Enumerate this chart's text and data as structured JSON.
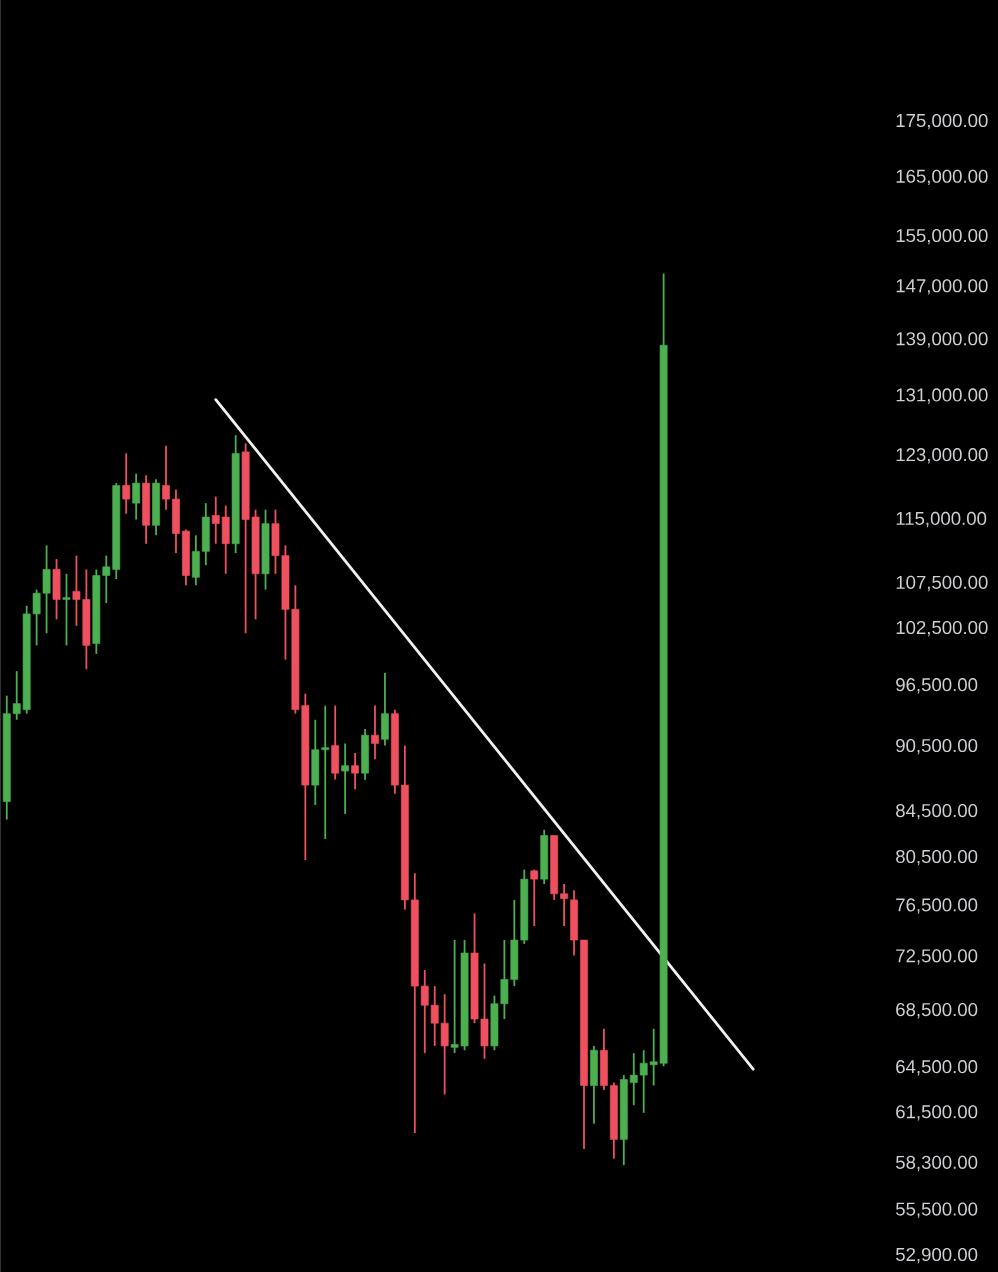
{
  "chart_data": {
    "type": "candlestick",
    "log": true,
    "tick_labels": "y",
    "ylim": [
      52000,
      199000
    ],
    "yticks": [
      {
        "value": 175000,
        "label": "175,000.00"
      },
      {
        "value": 165000,
        "label": "165,000.00"
      },
      {
        "value": 155000,
        "label": "155,000.00"
      },
      {
        "value": 147000,
        "label": "147,000.00"
      },
      {
        "value": 139000,
        "label": "139,000.00"
      },
      {
        "value": 131000,
        "label": "131,000.00"
      },
      {
        "value": 123000,
        "label": "123,000.00"
      },
      {
        "value": 115000,
        "label": "115,000.00"
      },
      {
        "value": 107500,
        "label": "107,500.00"
      },
      {
        "value": 102500,
        "label": "102,500.00"
      },
      {
        "value": 96500,
        "label": "96,500.00"
      },
      {
        "value": 90500,
        "label": "90,500.00"
      },
      {
        "value": 84500,
        "label": "84,500.00"
      },
      {
        "value": 80500,
        "label": "80,500.00"
      },
      {
        "value": 76500,
        "label": "76,500.00"
      },
      {
        "value": 72500,
        "label": "72,500.00"
      },
      {
        "value": 68500,
        "label": "68,500.00"
      },
      {
        "value": 64500,
        "label": "64,500.00"
      },
      {
        "value": 61500,
        "label": "61,500.00"
      },
      {
        "value": 58300,
        "label": "58,300.00"
      },
      {
        "value": 55500,
        "label": "55,500.00"
      },
      {
        "value": 52900,
        "label": "52,900.00"
      }
    ],
    "categories": [
      null,
      null,
      null,
      null,
      null,
      null,
      null,
      null,
      null,
      null,
      null,
      null,
      null,
      null,
      null,
      null,
      null,
      null,
      null,
      null,
      null,
      null,
      null,
      null,
      null,
      null,
      null,
      null,
      null,
      null,
      null,
      null,
      null,
      null,
      null,
      null,
      null,
      null,
      null,
      null,
      null,
      null,
      null,
      null,
      null,
      null,
      null,
      null,
      null,
      null,
      null,
      null,
      null,
      null,
      null,
      null,
      null,
      null,
      null,
      null,
      null,
      null,
      null,
      null,
      null,
      null,
      null,
      null,
      null,
      null,
      null,
      null,
      null,
      null,
      null,
      null,
      null,
      null,
      null,
      null,
      null,
      null,
      null,
      null,
      null,
      null,
      null,
      null
    ],
    "ohlc": [
      [
        85400,
        95500,
        83800,
        93700
      ],
      [
        93700,
        98000,
        93100,
        94700
      ],
      [
        94100,
        105000,
        93700,
        104100
      ],
      [
        104100,
        106800,
        100700,
        106400
      ],
      [
        106400,
        111900,
        102000,
        109100
      ],
      [
        109100,
        110300,
        103500,
        105700
      ],
      [
        105700,
        108600,
        100700,
        105900
      ],
      [
        106600,
        110700,
        102800,
        105700
      ],
      [
        105700,
        109100,
        98200,
        100700
      ],
      [
        100900,
        109100,
        99800,
        108400
      ],
      [
        108400,
        110700,
        105300,
        109400
      ],
      [
        109100,
        119500,
        108000,
        119200
      ],
      [
        119200,
        123300,
        115700,
        117500
      ],
      [
        117000,
        120700,
        115000,
        119500
      ],
      [
        119500,
        120500,
        112100,
        114300
      ],
      [
        114300,
        120000,
        113100,
        119500
      ],
      [
        119200,
        124300,
        116200,
        117500
      ],
      [
        117500,
        118700,
        111000,
        113300
      ],
      [
        113600,
        113800,
        107300,
        108400
      ],
      [
        108200,
        113100,
        107300,
        111200
      ],
      [
        111200,
        117000,
        109600,
        115300
      ],
      [
        115500,
        117800,
        112100,
        114500
      ],
      [
        115300,
        116700,
        108600,
        112100
      ],
      [
        112100,
        125700,
        111000,
        123300
      ],
      [
        123500,
        124600,
        102000,
        115000
      ],
      [
        115300,
        116200,
        103500,
        108600
      ],
      [
        108600,
        116200,
        106800,
        114500
      ],
      [
        114500,
        116200,
        108600,
        110700
      ],
      [
        110700,
        111900,
        99200,
        104600
      ],
      [
        104600,
        107300,
        93700,
        94100
      ],
      [
        94500,
        95700,
        80300,
        86900
      ],
      [
        86900,
        93100,
        85100,
        90200
      ],
      [
        90200,
        94500,
        82100,
        90400
      ],
      [
        90600,
        94500,
        87400,
        88000
      ],
      [
        88200,
        90800,
        84300,
        88700
      ],
      [
        88700,
        89900,
        86500,
        88000
      ],
      [
        88000,
        92200,
        87400,
        91600
      ],
      [
        91600,
        94500,
        89300,
        90800
      ],
      [
        91200,
        97800,
        90600,
        93700
      ],
      [
        93700,
        94100,
        86100,
        86900
      ],
      [
        86900,
        90600,
        76200,
        77000
      ],
      [
        77000,
        79200,
        60200,
        70300
      ],
      [
        70300,
        71500,
        65500,
        68900
      ],
      [
        68900,
        70300,
        66000,
        67600
      ],
      [
        67600,
        69700,
        62700,
        66000
      ],
      [
        65900,
        73800,
        65500,
        66100
      ],
      [
        66000,
        73800,
        65700,
        72800
      ],
      [
        72800,
        75900,
        67600,
        67900
      ],
      [
        67900,
        72000,
        65100,
        66000
      ],
      [
        66000,
        69600,
        65700,
        69000
      ],
      [
        69000,
        73800,
        67900,
        70800
      ],
      [
        70800,
        77000,
        70300,
        73800
      ],
      [
        73800,
        79500,
        73500,
        78700
      ],
      [
        79400,
        79500,
        74900,
        78700
      ],
      [
        78700,
        82900,
        78300,
        82400
      ],
      [
        82400,
        82400,
        77000,
        77500
      ],
      [
        77500,
        78300,
        74900,
        77100
      ],
      [
        77000,
        77800,
        72600,
        73800
      ],
      [
        73800,
        73800,
        59200,
        63300
      ],
      [
        63300,
        66000,
        60800,
        65700
      ],
      [
        65700,
        67200,
        63000,
        63300
      ],
      [
        63300,
        63500,
        58600,
        59800
      ],
      [
        59800,
        64000,
        58200,
        63700
      ],
      [
        63500,
        65500,
        62000,
        64000
      ],
      [
        64000,
        65700,
        61500,
        64800
      ],
      [
        64700,
        67200,
        63300,
        64900
      ],
      [
        64800,
        149100,
        64600,
        138200
      ],
      null,
      null,
      null,
      null,
      null,
      null,
      null,
      null,
      null,
      null,
      null,
      null,
      null,
      null,
      null,
      null,
      null,
      null,
      null,
      null,
      null
    ],
    "colors": [
      "#4caf50",
      "#4caf50",
      "#4caf50",
      "#4caf50",
      "#4caf50",
      "#ef5060",
      "#4caf50",
      "#ef5060",
      "#ef5060",
      "#4caf50",
      "#4caf50",
      "#4caf50",
      "#ef5060",
      "#4caf50",
      "#ef5060",
      "#4caf50",
      "#ef5060",
      "#ef5060",
      "#ef5060",
      "#4caf50",
      "#4caf50",
      "#ef5060",
      "#ef5060",
      "#4caf50",
      "#ef5060",
      "#ef5060",
      "#4caf50",
      "#ef5060",
      "#ef5060",
      "#ef5060",
      "#ef5060",
      "#4caf50",
      "#4caf50",
      "#ef5060",
      "#4caf50",
      "#ef5060",
      "#4caf50",
      "#ef5060",
      "#4caf50",
      "#ef5060",
      "#ef5060",
      "#ef5060",
      "#ef5060",
      "#ef5060",
      "#ef5060",
      "#4caf50",
      "#4caf50",
      "#ef5060",
      "#ef5060",
      "#4caf50",
      "#4caf50",
      "#4caf50",
      "#4caf50",
      "#ef5060",
      "#4caf50",
      "#ef5060",
      "#ef5060",
      "#ef5060",
      "#ef5060",
      "#4caf50",
      "#ef5060",
      "#ef5060",
      "#4caf50",
      "#4caf50",
      "#4caf50",
      "#4caf50",
      "#4caf50",
      null,
      null,
      null,
      null,
      null,
      null,
      null,
      null,
      null,
      null,
      null,
      null,
      null,
      null,
      null,
      null,
      null,
      null,
      null,
      null,
      null
    ],
    "series": [
      {
        "type": "line",
        "color": "#f0f0f0",
        "values": [
          null,
          null,
          null,
          null,
          null,
          null,
          null,
          null,
          null,
          null,
          null,
          null,
          null,
          null,
          null,
          null,
          null,
          null,
          null,
          null,
          null,
          130500,
          null,
          null,
          null,
          null,
          null,
          null,
          null,
          null,
          null,
          null,
          null,
          null,
          null,
          null,
          null,
          null,
          null,
          null,
          null,
          null,
          null,
          null,
          null,
          null,
          null,
          null,
          null,
          null,
          null,
          null,
          null,
          null,
          null,
          null,
          null,
          null,
          null,
          null,
          null,
          null,
          null,
          null,
          null,
          null,
          null,
          null,
          null,
          null,
          null,
          null,
          null,
          null,
          null,
          64400,
          null,
          null,
          null,
          null,
          null,
          null,
          null,
          null,
          null,
          null,
          null,
          null
        ]
      }
    ]
  }
}
